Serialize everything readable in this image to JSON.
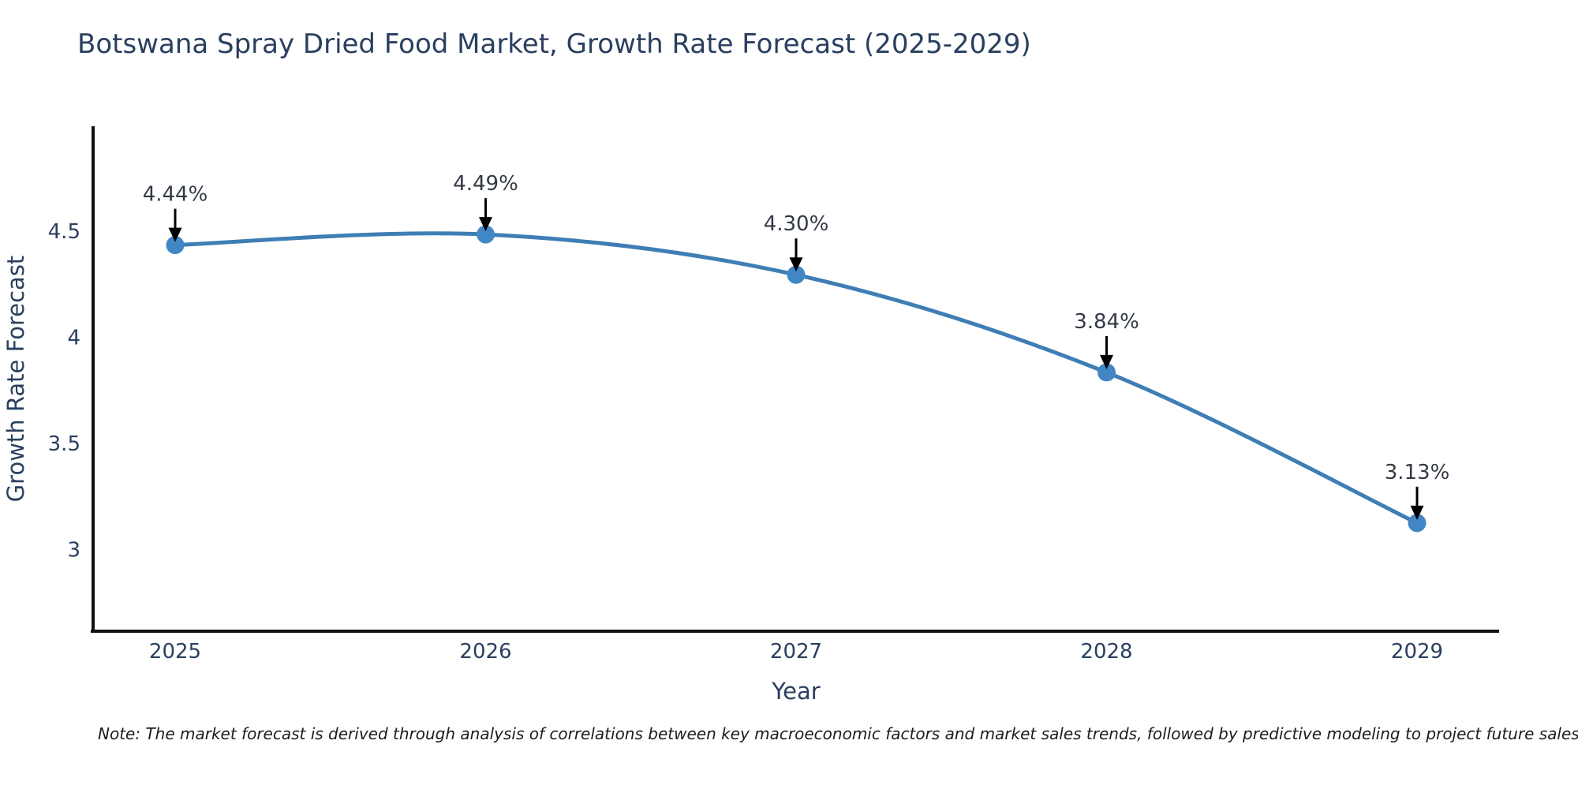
{
  "page": {
    "background": "#ffffff"
  },
  "title": {
    "text": "Botswana Spray Dried Food Market, Growth Rate Forecast (2025-2029)",
    "color": "#2a3f5f"
  },
  "note": {
    "text": "Note: The market forecast is derived through analysis of correlations between key macroeconomic factors and market sales trends, followed by predictive modeling to project future sales"
  },
  "chart_data": {
    "type": "line",
    "x": [
      2025,
      2026,
      2027,
      2028,
      2029
    ],
    "series": [
      {
        "name": "Growth Rate Forecast",
        "values": [
          4.44,
          4.49,
          4.3,
          3.84,
          3.13
        ]
      }
    ],
    "point_labels": [
      "4.44%",
      "4.49%",
      "4.30%",
      "3.84%",
      "3.13%"
    ],
    "xtick_labels": [
      "2025",
      "2026",
      "2027",
      "2028",
      "2029"
    ],
    "yticks": [
      3,
      3.5,
      4,
      4.5
    ],
    "ytick_labels": [
      "3",
      "3.5",
      "4",
      "4.5"
    ],
    "ylim": [
      2.62,
      5.0
    ],
    "xlabel": "Year",
    "ylabel": "Growth Rate Forecast",
    "grid": false,
    "legend": "none",
    "line_shape": "spline",
    "colors": {
      "line": "#3f7eb5",
      "marker": "#4187c5",
      "axis": "#111111",
      "tick_text": "#2a3f5f",
      "axis_title_text": "#2a3f5f",
      "annotation_text": "#333a45",
      "arrow": "#000000"
    }
  }
}
